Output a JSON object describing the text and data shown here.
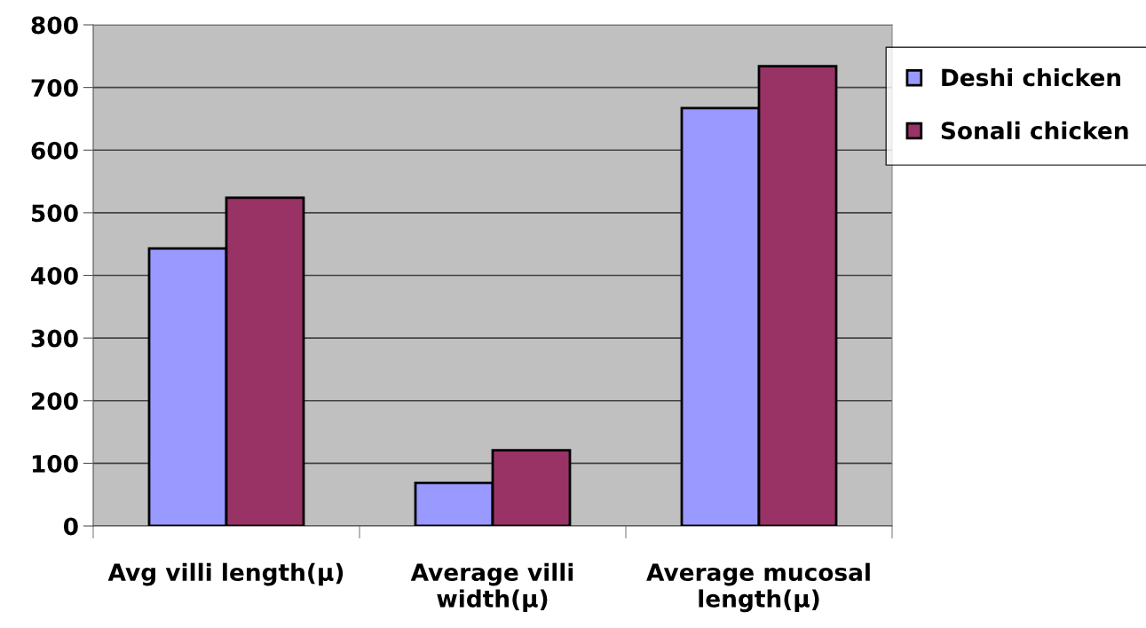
{
  "chart_data": {
    "type": "bar",
    "categories": [
      "Avg villi length(µ)",
      "Average villi width(µ)",
      "Average mucosal length(µ)"
    ],
    "series": [
      {
        "name": "Deshi chicken",
        "color": "#9999ff",
        "values": [
          443,
          69,
          667
        ]
      },
      {
        "name": "Sonali chicken",
        "color": "#993366",
        "values": [
          524,
          121,
          734
        ]
      }
    ],
    "ylim": [
      0,
      800
    ],
    "yticks": [
      0,
      100,
      200,
      300,
      400,
      500,
      600,
      700,
      800
    ],
    "grid": "y",
    "legend": "top right"
  }
}
